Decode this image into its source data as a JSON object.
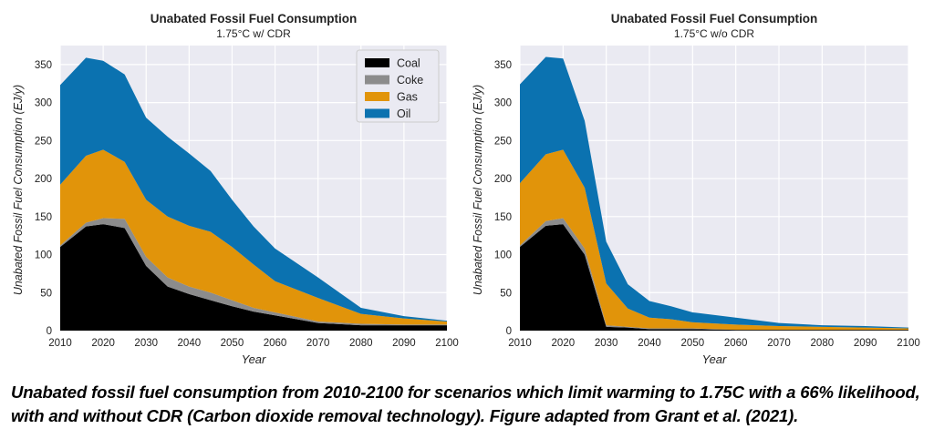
{
  "caption": {
    "line1": "Unabated fossil fuel consumption from 2010-2100 for scenarios which limit warming to 1.75C with a 66% likelihood,",
    "line2": "with and without CDR (Carbon dioxide removal technology). Figure adapted from Grant et al. (2021)."
  },
  "colors": {
    "Coal": "#000000",
    "Coke": "#8c8c8c",
    "Gas": "#e1940a",
    "Oil": "#0b72b0",
    "plot_background": "#eaeaf2",
    "grid": "#ffffff"
  },
  "chart_data": [
    {
      "type": "area",
      "stacked": true,
      "title": "Unabated Fossil Fuel Consumption",
      "subtitle": "1.75°C w/ CDR",
      "xlabel": "Year",
      "ylabel": "Unabated Fossil Fuel Consumption (EJ/y)",
      "xlim": [
        2010,
        2100
      ],
      "ylim": [
        0,
        375
      ],
      "xticks": [
        2010,
        2020,
        2030,
        2040,
        2050,
        2060,
        2070,
        2080,
        2090,
        2100
      ],
      "yticks": [
        0,
        50,
        100,
        150,
        200,
        250,
        300,
        350
      ],
      "grid": true,
      "legend": "top-right",
      "legend_entries": [
        "Coal",
        "Coke",
        "Gas",
        "Oil"
      ],
      "x": [
        2010,
        2016,
        2020,
        2025,
        2030,
        2035,
        2040,
        2045,
        2050,
        2055,
        2060,
        2070,
        2080,
        2090,
        2100
      ],
      "series": [
        {
          "name": "Coal",
          "values": [
            110,
            137,
            140,
            135,
            85,
            58,
            48,
            40,
            32,
            25,
            20,
            10,
            7,
            7,
            7
          ]
        },
        {
          "name": "Coke",
          "values": [
            2,
            5,
            8,
            12,
            12,
            12,
            10,
            10,
            8,
            5,
            4,
            2,
            2,
            1,
            1
          ]
        },
        {
          "name": "Gas",
          "values": [
            80,
            88,
            90,
            75,
            75,
            80,
            80,
            80,
            70,
            57,
            41,
            31,
            13,
            8,
            4
          ]
        },
        {
          "name": "Oil",
          "values": [
            131,
            129,
            117,
            115,
            108,
            105,
            95,
            80,
            62,
            50,
            43,
            27,
            8,
            3,
            1
          ]
        }
      ]
    },
    {
      "type": "area",
      "stacked": true,
      "title": "Unabated Fossil Fuel Consumption",
      "subtitle": "1.75°C w/o CDR",
      "xlabel": "Year",
      "ylabel": "Unabated Fossil Fuel Consumption (EJ/y)",
      "xlim": [
        2010,
        2100
      ],
      "ylim": [
        0,
        375
      ],
      "xticks": [
        2010,
        2020,
        2030,
        2040,
        2050,
        2060,
        2070,
        2080,
        2090,
        2100
      ],
      "yticks": [
        0,
        50,
        100,
        150,
        200,
        250,
        300,
        350
      ],
      "grid": true,
      "x": [
        2010,
        2016,
        2020,
        2025,
        2030,
        2035,
        2040,
        2045,
        2050,
        2060,
        2070,
        2080,
        2090,
        2100
      ],
      "series": [
        {
          "name": "Coal",
          "values": [
            110,
            138,
            140,
            100,
            5,
            4,
            2,
            2,
            2,
            1,
            1,
            1,
            1,
            1
          ]
        },
        {
          "name": "Coke",
          "values": [
            2,
            6,
            8,
            8,
            2,
            1,
            1,
            1,
            1,
            0,
            0,
            0,
            0,
            0
          ]
        },
        {
          "name": "Gas",
          "values": [
            82,
            88,
            90,
            80,
            55,
            24,
            14,
            12,
            8,
            7,
            5,
            4,
            3,
            2
          ]
        },
        {
          "name": "Oil",
          "values": [
            130,
            128,
            120,
            88,
            55,
            32,
            22,
            17,
            13,
            9,
            4,
            2,
            2,
            1
          ]
        }
      ]
    }
  ]
}
